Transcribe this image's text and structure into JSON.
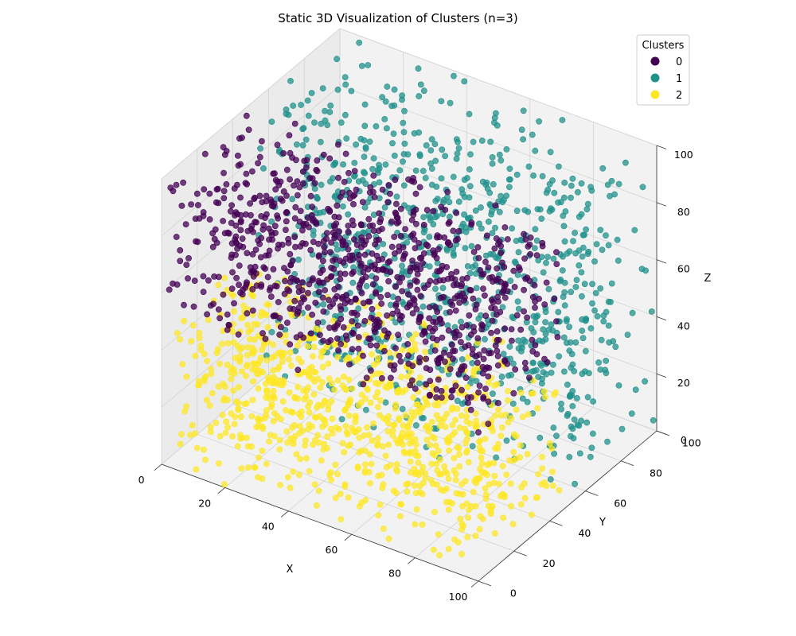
{
  "chart_data": {
    "type": "scatter",
    "projection": "3d",
    "title": "Static 3D Visualization of Clusters (n=3)",
    "xlabel": "X",
    "ylabel": "Y",
    "zlabel": "Z",
    "xlim": [
      0,
      100
    ],
    "ylim": [
      0,
      100
    ],
    "zlim": [
      0,
      100
    ],
    "x_ticks": [
      "0",
      "20",
      "40",
      "60",
      "80",
      "100"
    ],
    "y_ticks": [
      "0",
      "20",
      "40",
      "60",
      "80",
      "100"
    ],
    "z_ticks": [
      "0",
      "20",
      "40",
      "60",
      "80",
      "100"
    ],
    "grid": true,
    "legend": {
      "title": "Clusters",
      "placement": "top-right",
      "entries": [
        {
          "label": "0",
          "color": "#440154"
        },
        {
          "label": "1",
          "color": "#21918c"
        },
        {
          "label": "2",
          "color": "#fde725"
        }
      ]
    },
    "series": [
      {
        "name": "0",
        "color": "#440154",
        "x": [
          0,
          100
        ],
        "y": [
          0,
          50
        ],
        "z": [
          50,
          100
        ]
      },
      {
        "name": "1",
        "color": "#21918c",
        "x": [
          0,
          100
        ],
        "y": [
          50,
          100
        ],
        "z": [
          0,
          100
        ]
      },
      {
        "name": "2",
        "color": "#fde725",
        "x": [
          0,
          100
        ],
        "y": [
          0,
          50
        ],
        "z": [
          0,
          50
        ]
      }
    ]
  }
}
